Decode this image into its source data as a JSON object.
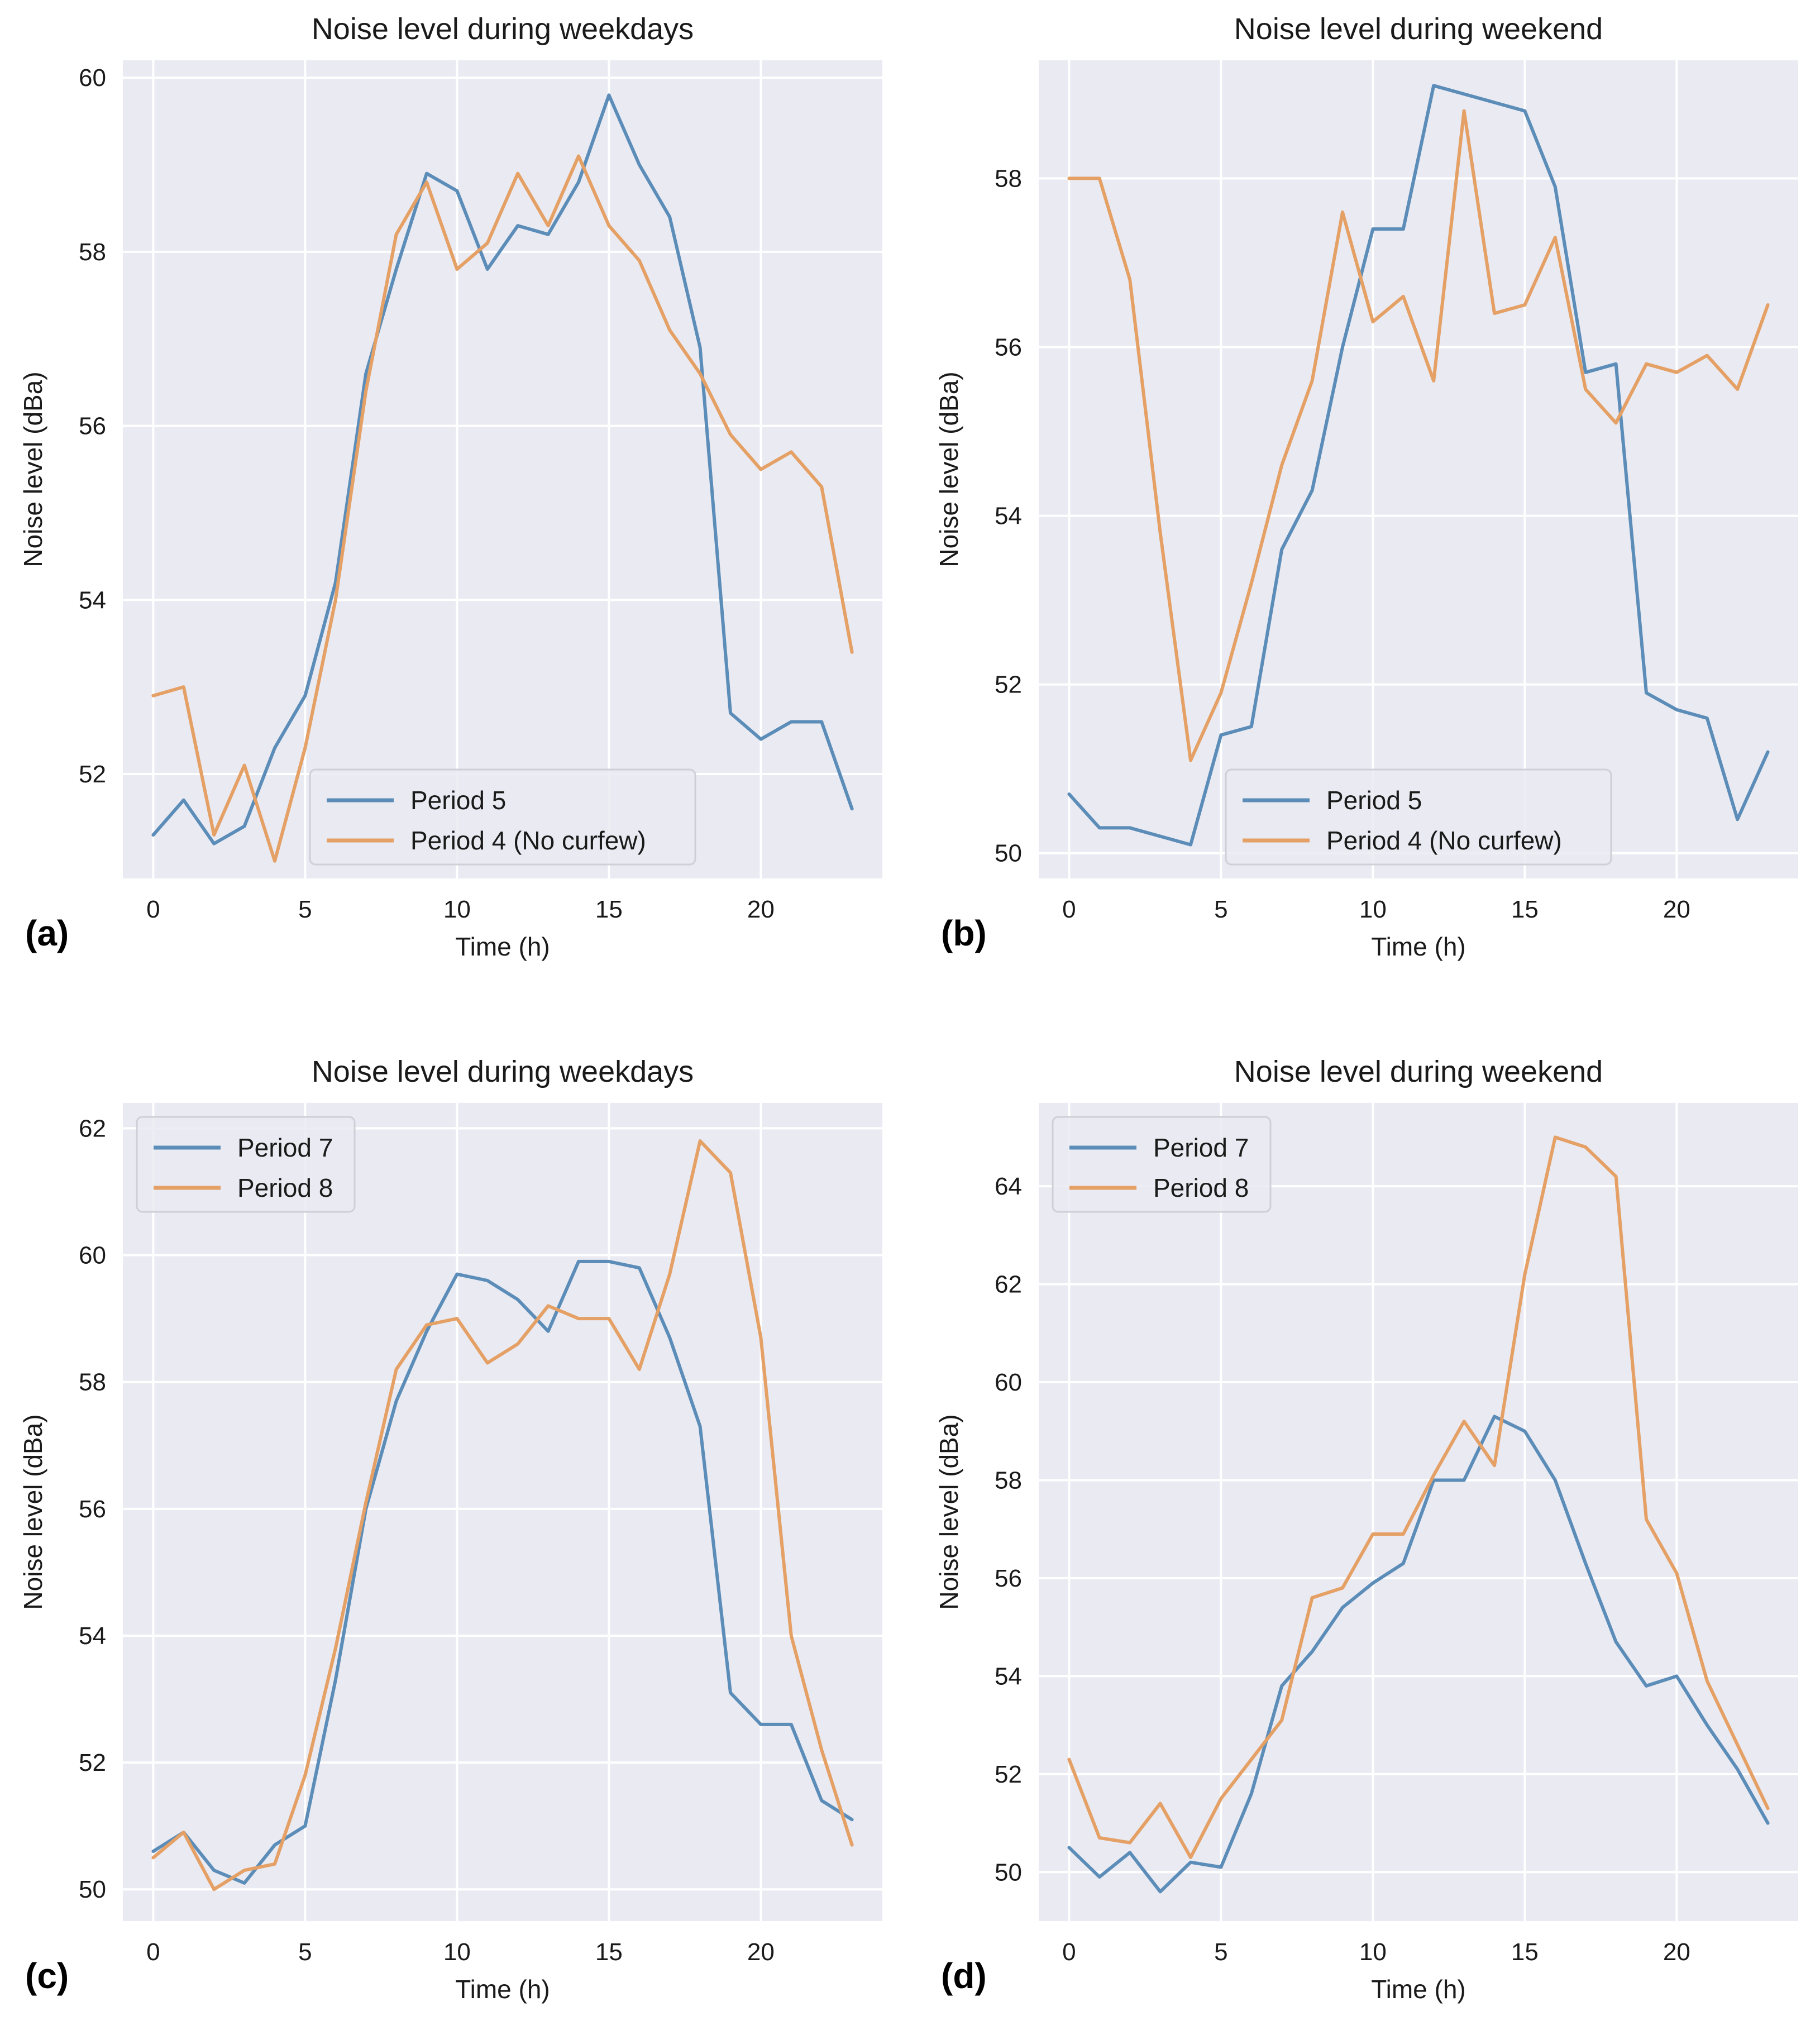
{
  "colors": {
    "series1": "#5b8db8",
    "series2": "#e4a065",
    "panel_bg": "#eaeaf2",
    "grid": "#ffffff",
    "text": "#1a1a1a"
  },
  "chart_data": [
    {
      "panel_label": "(a)",
      "type": "line",
      "title": "Noise level during weekdays",
      "xlabel": "Time (h)",
      "ylabel": "Noise level (dBa)",
      "xlim": [
        -1,
        24
      ],
      "ylim": [
        50.8,
        60.2
      ],
      "xticks": [
        0,
        5,
        10,
        15,
        20
      ],
      "yticks": [
        52,
        54,
        56,
        58,
        60
      ],
      "grid": true,
      "legend_position": "lower-center",
      "x": [
        0,
        1,
        2,
        3,
        4,
        5,
        6,
        7,
        8,
        9,
        10,
        11,
        12,
        13,
        14,
        15,
        16,
        17,
        18,
        19,
        20,
        21,
        22,
        23
      ],
      "series": [
        {
          "name": "Period 5",
          "values": [
            51.3,
            51.7,
            51.2,
            51.4,
            52.3,
            52.9,
            54.2,
            56.6,
            57.8,
            58.9,
            58.7,
            57.8,
            58.3,
            58.2,
            58.8,
            59.8,
            59.0,
            58.4,
            56.9,
            52.7,
            52.4,
            52.6,
            52.6,
            51.6
          ]
        },
        {
          "name": "Period 4 (No curfew)",
          "values": [
            52.9,
            53.0,
            51.3,
            52.1,
            51.0,
            52.3,
            54.0,
            56.4,
            58.2,
            58.8,
            57.8,
            58.1,
            58.9,
            58.3,
            59.1,
            58.3,
            57.9,
            57.1,
            56.6,
            55.9,
            55.5,
            55.7,
            55.3,
            53.4
          ]
        }
      ]
    },
    {
      "panel_label": "(b)",
      "type": "line",
      "title": "Noise level during weekend",
      "xlabel": "Time (h)",
      "ylabel": "Noise level (dBa)",
      "xlim": [
        -1,
        24
      ],
      "ylim": [
        49.7,
        59.4
      ],
      "xticks": [
        0,
        5,
        10,
        15,
        20
      ],
      "yticks": [
        50,
        52,
        54,
        56,
        58
      ],
      "grid": true,
      "legend_position": "lower-center",
      "x": [
        0,
        1,
        2,
        3,
        4,
        5,
        6,
        7,
        8,
        9,
        10,
        11,
        12,
        13,
        14,
        15,
        16,
        17,
        18,
        19,
        20,
        21,
        22,
        23
      ],
      "series": [
        {
          "name": "Period 5",
          "values": [
            50.7,
            50.3,
            50.3,
            50.2,
            50.1,
            51.4,
            51.5,
            53.6,
            54.3,
            56.0,
            57.4,
            57.4,
            59.1,
            59.0,
            58.9,
            58.8,
            57.9,
            55.7,
            55.8,
            51.9,
            51.7,
            51.6,
            50.4,
            51.2
          ]
        },
        {
          "name": "Period 4 (No curfew)",
          "values": [
            58.0,
            58.0,
            56.8,
            53.8,
            51.1,
            51.9,
            53.2,
            54.6,
            55.6,
            57.6,
            56.3,
            56.6,
            55.6,
            58.8,
            56.4,
            56.5,
            57.3,
            55.5,
            55.1,
            55.8,
            55.7,
            55.9,
            55.5,
            56.5
          ]
        }
      ]
    },
    {
      "panel_label": "(c)",
      "type": "line",
      "title": "Noise level during weekdays",
      "xlabel": "Time (h)",
      "ylabel": "Noise level (dBa)",
      "xlim": [
        -1,
        24
      ],
      "ylim": [
        49.5,
        62.4
      ],
      "xticks": [
        0,
        5,
        10,
        15,
        20
      ],
      "yticks": [
        50,
        52,
        54,
        56,
        58,
        60,
        62
      ],
      "grid": true,
      "legend_position": "top-left",
      "x": [
        0,
        1,
        2,
        3,
        4,
        5,
        6,
        7,
        8,
        9,
        10,
        11,
        12,
        13,
        14,
        15,
        16,
        17,
        18,
        19,
        20,
        21,
        22,
        23
      ],
      "series": [
        {
          "name": "Period 7",
          "values": [
            50.6,
            50.9,
            50.3,
            50.1,
            50.7,
            51.0,
            53.3,
            56.0,
            57.7,
            58.8,
            59.7,
            59.6,
            59.3,
            58.8,
            59.9,
            59.9,
            59.8,
            58.7,
            57.3,
            53.1,
            52.6,
            52.6,
            51.4,
            51.1
          ]
        },
        {
          "name": "Period 8",
          "values": [
            50.5,
            50.9,
            50.0,
            50.3,
            50.4,
            51.8,
            53.8,
            56.1,
            58.2,
            58.9,
            59.0,
            58.3,
            58.6,
            59.2,
            59.0,
            59.0,
            58.2,
            59.7,
            61.8,
            61.3,
            58.7,
            54.0,
            52.2,
            50.7
          ]
        }
      ]
    },
    {
      "panel_label": "(d)",
      "type": "line",
      "title": "Noise level during weekend",
      "xlabel": "Time (h)",
      "ylabel": "Noise level (dBa)",
      "xlim": [
        -1,
        24
      ],
      "ylim": [
        49.0,
        65.7
      ],
      "xticks": [
        0,
        5,
        10,
        15,
        20
      ],
      "yticks": [
        50,
        52,
        54,
        56,
        58,
        60,
        62,
        64
      ],
      "grid": true,
      "legend_position": "top-left",
      "x": [
        0,
        1,
        2,
        3,
        4,
        5,
        6,
        7,
        8,
        9,
        10,
        11,
        12,
        13,
        14,
        15,
        16,
        17,
        18,
        19,
        20,
        21,
        22,
        23
      ],
      "series": [
        {
          "name": "Period 7",
          "values": [
            50.5,
            49.9,
            50.4,
            49.6,
            50.2,
            50.1,
            51.6,
            53.8,
            54.5,
            55.4,
            55.9,
            56.3,
            58.0,
            58.0,
            59.3,
            59.0,
            58.0,
            56.3,
            54.7,
            53.8,
            54.0,
            53.0,
            52.1,
            51.0
          ]
        },
        {
          "name": "Period 8",
          "values": [
            52.3,
            50.7,
            50.6,
            51.4,
            50.3,
            51.5,
            52.3,
            53.1,
            55.6,
            55.8,
            56.9,
            56.9,
            58.1,
            59.2,
            58.3,
            62.2,
            65.0,
            64.8,
            64.2,
            57.2,
            56.1,
            53.9,
            52.6,
            51.3
          ]
        }
      ]
    }
  ]
}
